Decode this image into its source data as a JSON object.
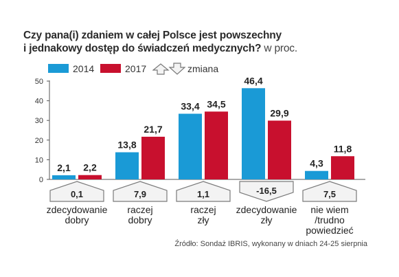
{
  "chart_data": {
    "type": "bar",
    "title": "Czy pana(i) zdaniem w całej Polsce jest powszechny i jednakowy dostęp do świadczeń medycznych?",
    "title_lines": [
      "Czy pana(i) zdaniem w całej Polsce jest powszechny",
      "i jednakowy dostęp do świadczeń medycznych?"
    ],
    "unit": "w proc.",
    "categories": [
      [
        "zdecydowanie",
        "dobry"
      ],
      [
        "raczej",
        "dobry"
      ],
      [
        "raczej",
        "zły"
      ],
      [
        "zdecydowanie",
        "zły"
      ],
      [
        "nie wiem",
        "/trudno",
        "powiedzieć"
      ]
    ],
    "series": [
      {
        "name": "2014",
        "color": "#1a9ad6",
        "values": [
          2.1,
          13.8,
          33.4,
          46.4,
          4.3
        ],
        "labels": [
          "2,1",
          "13,8",
          "33,4",
          "46,4",
          "4,3"
        ]
      },
      {
        "name": "2017",
        "color": "#c8102e",
        "values": [
          2.2,
          21.7,
          34.5,
          29.9,
          11.8
        ],
        "labels": [
          "2,2",
          "21,7",
          "34,5",
          "29,9",
          "11,8"
        ]
      }
    ],
    "change": {
      "name": "zmiana",
      "values": [
        0.1,
        7.9,
        1.1,
        -16.5,
        7.5
      ],
      "labels": [
        "0,1",
        "7,9",
        "1,1",
        "-16,5",
        "7,5"
      ]
    },
    "ylim": [
      0,
      50
    ],
    "yticks": [
      0,
      10,
      20,
      30,
      40,
      50
    ],
    "ytick_labels": [
      "0",
      "10",
      "20",
      "30",
      "40",
      "50"
    ],
    "grid": false,
    "legend_position": "top-left",
    "source": "Źródło: Sondaż IBRIS, wykonany w dniach 24-25 sierpnia"
  }
}
